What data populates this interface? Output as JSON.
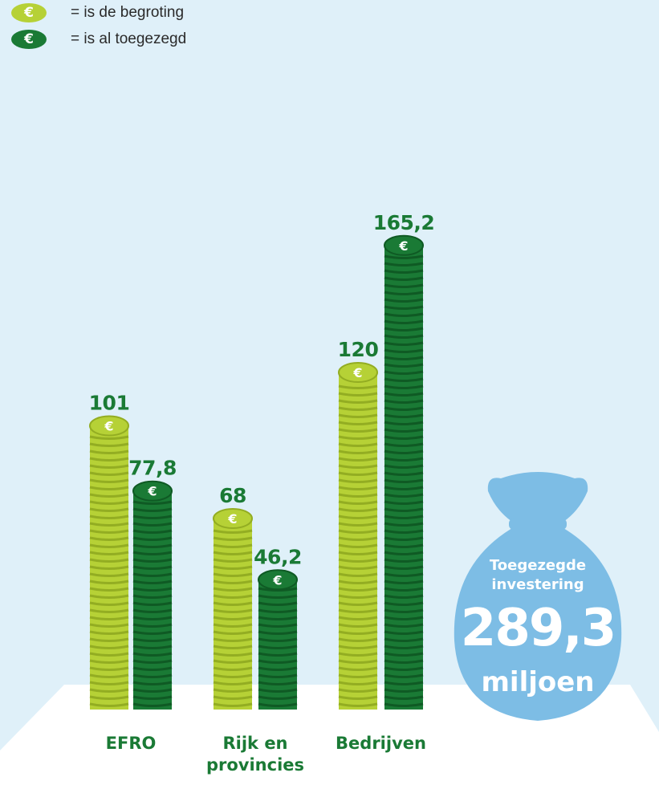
{
  "legend": [
    {
      "label": "= is de begroting",
      "color": "#b6d136"
    },
    {
      "label": "= is al toegezegd",
      "color": "#1a7a35"
    }
  ],
  "coin_symbol": "€",
  "colors": {
    "budget": "#b6d136",
    "budget_dark": "#93ad22",
    "committed": "#1a7a35",
    "committed_dark": "#0f5a24",
    "background": "#dff0f9",
    "floor": "#ffffff",
    "bag": "#7dbde5"
  },
  "chart_data": {
    "type": "bar",
    "categories": [
      "EFRO",
      "Rijk en provincies",
      "Bedrijven"
    ],
    "series": [
      {
        "name": "is de begroting",
        "values": [
          101,
          68,
          120
        ]
      },
      {
        "name": "is al toegezegd",
        "values": [
          77.8,
          46.2,
          165.2
        ]
      }
    ],
    "value_labels": [
      [
        "101",
        "68",
        "120"
      ],
      [
        "77,8",
        "46,2",
        "165,2"
      ]
    ],
    "category_lines": [
      [
        "EFRO"
      ],
      [
        "Rijk en",
        "provincies"
      ],
      [
        "Bedrijven"
      ]
    ]
  },
  "summary": {
    "line1": "Toegezegde",
    "line2": "investering",
    "amount": "289,3",
    "unit": "miljoen"
  }
}
